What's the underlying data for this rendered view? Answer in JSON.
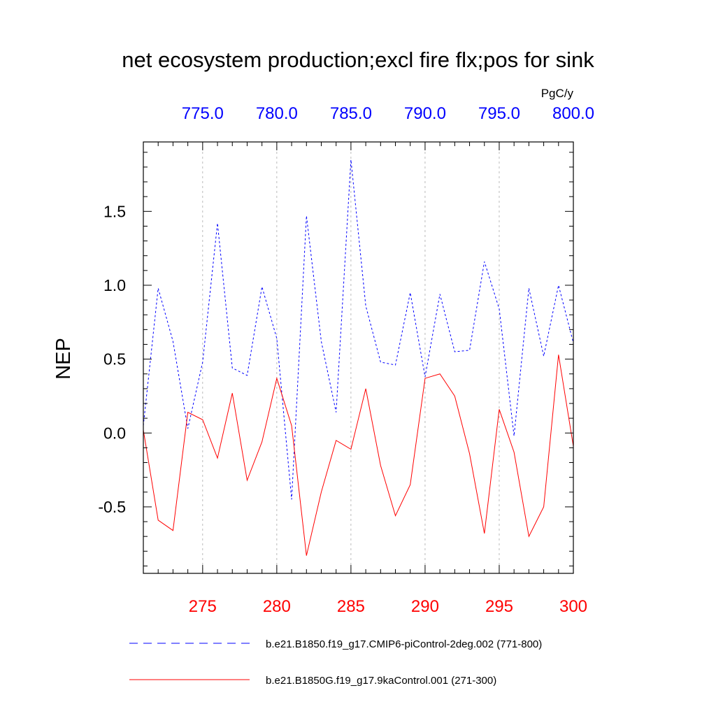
{
  "chart_data": {
    "type": "line",
    "title": "net ecosystem production;excl fire flx;pos for sink",
    "units": "PgC/y",
    "ylabel": "NEP",
    "ylim": [
      -0.95,
      1.97
    ],
    "yticks": [
      -0.5,
      0.0,
      0.5,
      1.0,
      1.5
    ],
    "ytick_labels": [
      "-0.5",
      "0.0",
      "0.5",
      "1.0",
      "1.5"
    ],
    "x_bottom": {
      "range": [
        271,
        300
      ],
      "ticks": [
        275,
        280,
        285,
        290,
        295,
        300
      ],
      "tick_labels": [
        "275",
        "280",
        "285",
        "290",
        "295",
        "300"
      ],
      "color": "#ff0000"
    },
    "x_top": {
      "range": [
        771,
        800
      ],
      "ticks": [
        775,
        780,
        785,
        790,
        795,
        800
      ],
      "tick_labels": [
        "775.0",
        "780.0",
        "785.0",
        "790.0",
        "795.0",
        "800.0"
      ],
      "color": "#0000ff"
    },
    "grid": "vertical dashed at major x ticks",
    "series": [
      {
        "name": "b.e21.B1850.f19_g17.CMIP6-piControl-2deg.002 (771-800)",
        "axis": "top",
        "color": "#0000ff",
        "style": "dashed",
        "x": [
          771,
          772,
          773,
          774,
          775,
          776,
          777,
          778,
          779,
          780,
          781,
          782,
          783,
          784,
          785,
          786,
          787,
          788,
          789,
          790,
          791,
          792,
          793,
          794,
          795,
          796,
          797,
          798,
          799,
          800
        ],
        "values": [
          0.05,
          0.98,
          0.62,
          0.03,
          0.48,
          1.42,
          0.44,
          0.39,
          0.99,
          0.64,
          -0.45,
          1.47,
          0.62,
          0.14,
          1.85,
          0.86,
          0.48,
          0.46,
          0.95,
          0.38,
          0.94,
          0.55,
          0.56,
          1.16,
          0.84,
          -0.02,
          0.98,
          0.52,
          1.0,
          0.61
        ]
      },
      {
        "name": "b.e21.B1850G.f19_g17.9kaControl.001 (271-300)",
        "axis": "bottom",
        "color": "#ff0000",
        "style": "solid",
        "x": [
          271,
          272,
          273,
          274,
          275,
          276,
          277,
          278,
          279,
          280,
          281,
          282,
          283,
          284,
          285,
          286,
          287,
          288,
          289,
          290,
          291,
          292,
          293,
          294,
          295,
          296,
          297,
          298,
          299,
          300
        ],
        "values": [
          0.02,
          -0.59,
          -0.66,
          0.14,
          0.09,
          -0.17,
          0.27,
          -0.32,
          -0.06,
          0.37,
          0.05,
          -0.83,
          -0.4,
          -0.05,
          -0.11,
          0.3,
          -0.22,
          -0.56,
          -0.35,
          0.37,
          0.4,
          0.25,
          -0.14,
          -0.68,
          0.16,
          -0.13,
          -0.7,
          -0.5,
          0.53,
          -0.09
        ]
      }
    ]
  }
}
